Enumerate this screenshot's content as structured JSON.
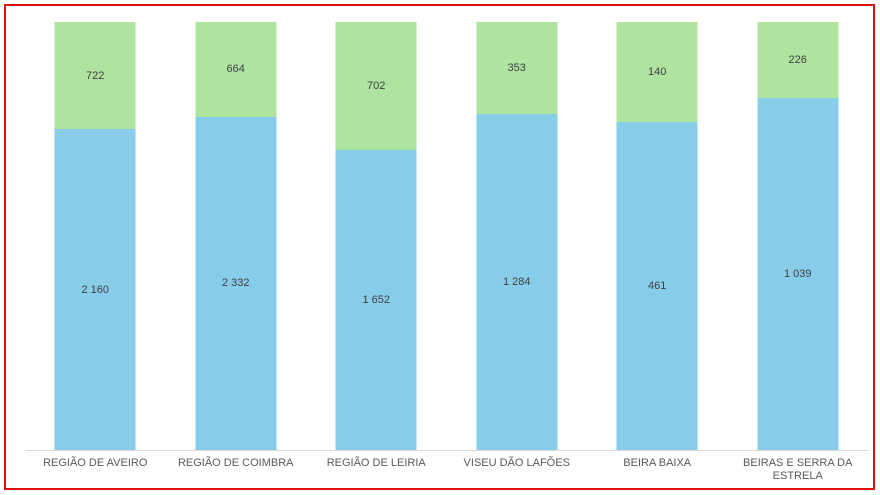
{
  "chart_data": {
    "type": "bar",
    "subtype": "stacked-100-percent-column",
    "title": "",
    "xlabel": "",
    "ylabel": "",
    "grid": false,
    "legend": "none",
    "categories": [
      "REGIÃO DE AVEIRO",
      "REGIÃO DE COIMBRA",
      "REGIÃO DE LEIRIA",
      "VISEU DÃO LAFÕES",
      "BEIRA BAIXA",
      "BEIRAS E SERRA DA ESTRELA"
    ],
    "series": [
      {
        "name": "blue-bottom-series",
        "color": "#87CDEA",
        "values": [
          2160,
          2332,
          1652,
          1284,
          461,
          1039
        ],
        "labels": [
          "2 160",
          "2 332",
          "1 652",
          "1 284",
          "461",
          "1 039"
        ]
      },
      {
        "name": "green-top-series",
        "color": "#AEE3A0",
        "values": [
          722,
          664,
          702,
          353,
          140,
          226
        ],
        "labels": [
          "722",
          "664",
          "702",
          "353",
          "140",
          "226"
        ]
      }
    ],
    "colors": {
      "frame_border": "#e01010",
      "axis_line": "#d9d9d9",
      "data_label": "#404040",
      "category_label": "#595959",
      "background": "#ffffff"
    }
  }
}
